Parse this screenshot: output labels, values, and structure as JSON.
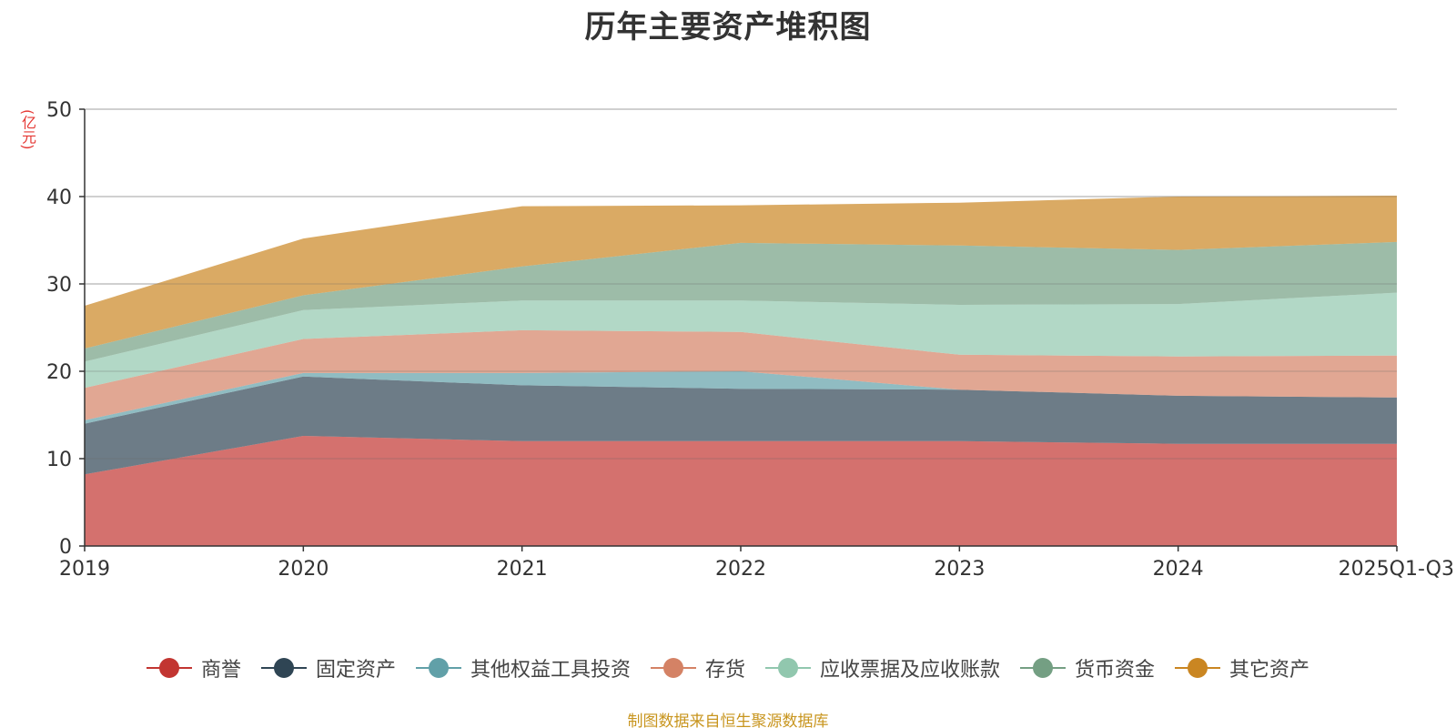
{
  "chart_data": {
    "type": "area",
    "stacked": true,
    "title": "历年主要资产堆积图",
    "ylabel": "(亿元)",
    "xlabel": "",
    "ylim": [
      0,
      50
    ],
    "yticks": [
      0,
      10,
      20,
      30,
      40,
      50
    ],
    "categories": [
      "2019",
      "2020",
      "2021",
      "2022",
      "2023",
      "2024",
      "2025Q1-Q3"
    ],
    "grid": true,
    "legend_position": "bottom",
    "source": "制图数据来自恒生聚源数据库",
    "series": [
      {
        "name": "商誉",
        "color": "#c23531",
        "values": [
          8.2,
          12.6,
          12.0,
          12.0,
          12.0,
          11.7,
          11.7
        ]
      },
      {
        "name": "固定资产",
        "color": "#2f4554",
        "values": [
          5.8,
          6.8,
          6.4,
          6.0,
          5.9,
          5.5,
          5.3
        ]
      },
      {
        "name": "其他权益工具投资",
        "color": "#61a0a8",
        "values": [
          0.4,
          0.4,
          1.4,
          2.0,
          0.0,
          0.0,
          0.0
        ]
      },
      {
        "name": "存货",
        "color": "#d48265",
        "values": [
          3.7,
          3.9,
          4.9,
          4.5,
          4.0,
          4.5,
          4.8
        ]
      },
      {
        "name": "应收票据及应收账款",
        "color": "#91c7ae",
        "values": [
          3.0,
          3.3,
          3.4,
          3.6,
          5.7,
          6.0,
          7.2
        ]
      },
      {
        "name": "货币资金",
        "color": "#749f83",
        "values": [
          1.5,
          1.7,
          3.9,
          6.6,
          6.8,
          6.2,
          5.8
        ]
      },
      {
        "name": "其它资产",
        "color": "#ca8622",
        "values": [
          4.9,
          6.5,
          6.9,
          4.3,
          4.9,
          6.1,
          5.3
        ]
      }
    ]
  }
}
